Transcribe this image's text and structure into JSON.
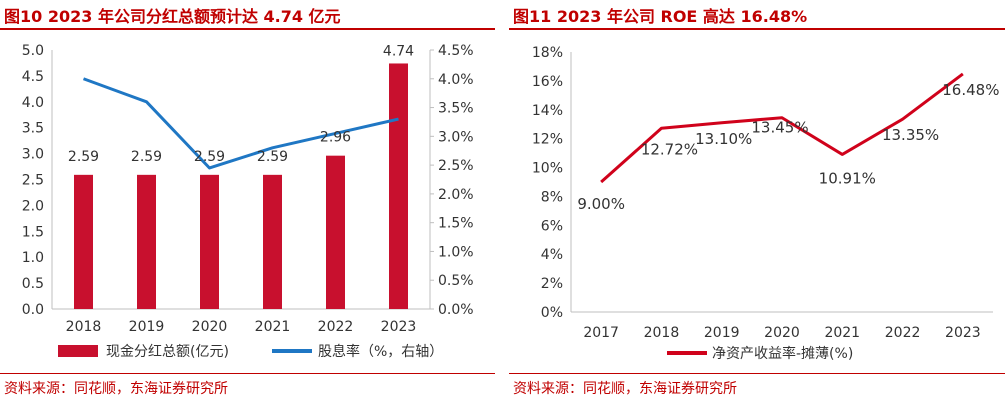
{
  "panels": [
    {
      "title": "图10  2023 年公司分红总额预计达 4.74 亿元",
      "source": "资料来源：同花顺，东海证券研究所"
    },
    {
      "title": "图11  2023 年公司 ROE 高达 16.48%",
      "source": "资料来源：同花顺，东海证券研究所"
    }
  ],
  "colors": {
    "accent": "#c00000",
    "bar": "#c8102e",
    "line_blue": "#1f77c4",
    "line_red": "#d0021b"
  },
  "chart_data": [
    {
      "type": "bar",
      "categories": [
        "2018",
        "2019",
        "2020",
        "2021",
        "2022",
        "2023"
      ],
      "series": [
        {
          "name": "现金分红总额(亿元)",
          "type": "bar",
          "axis": "left",
          "values": [
            2.59,
            2.59,
            2.59,
            2.59,
            2.96,
            4.74
          ],
          "labels": [
            "2.59",
            "2.59",
            "2.59",
            "2.59",
            "2.96",
            "4.74"
          ]
        },
        {
          "name": "股息率（%，右轴）",
          "type": "line",
          "axis": "right",
          "values": [
            4.0,
            3.6,
            2.45,
            2.8,
            3.05,
            3.3
          ]
        }
      ],
      "ylim": [
        0,
        5.0
      ],
      "yticks": [
        "0.0",
        "0.5",
        "1.0",
        "1.5",
        "2.0",
        "2.5",
        "3.0",
        "3.5",
        "4.0",
        "4.5",
        "5.0"
      ],
      "y2lim": [
        0,
        4.5
      ],
      "y2ticks": [
        "0.0%",
        "0.5%",
        "1.0%",
        "1.5%",
        "2.0%",
        "2.5%",
        "3.0%",
        "3.5%",
        "4.0%",
        "4.5%"
      ],
      "legend": "bottom"
    },
    {
      "type": "line",
      "categories": [
        "2017",
        "2018",
        "2019",
        "2020",
        "2021",
        "2022",
        "2023"
      ],
      "series": [
        {
          "name": "净资产收益率-摊薄(%)",
          "values": [
            9.0,
            12.72,
            13.1,
            13.45,
            10.91,
            13.35,
            16.48
          ],
          "labels": [
            "9.00%",
            "12.72%",
            "13.10%",
            "13.45%",
            "10.91%",
            "13.35%",
            "16.48%"
          ]
        }
      ],
      "ylim": [
        0,
        18
      ],
      "yticks": [
        "0%",
        "2%",
        "4%",
        "6%",
        "8%",
        "10%",
        "12%",
        "14%",
        "16%",
        "18%"
      ],
      "legend": "bottom"
    }
  ]
}
